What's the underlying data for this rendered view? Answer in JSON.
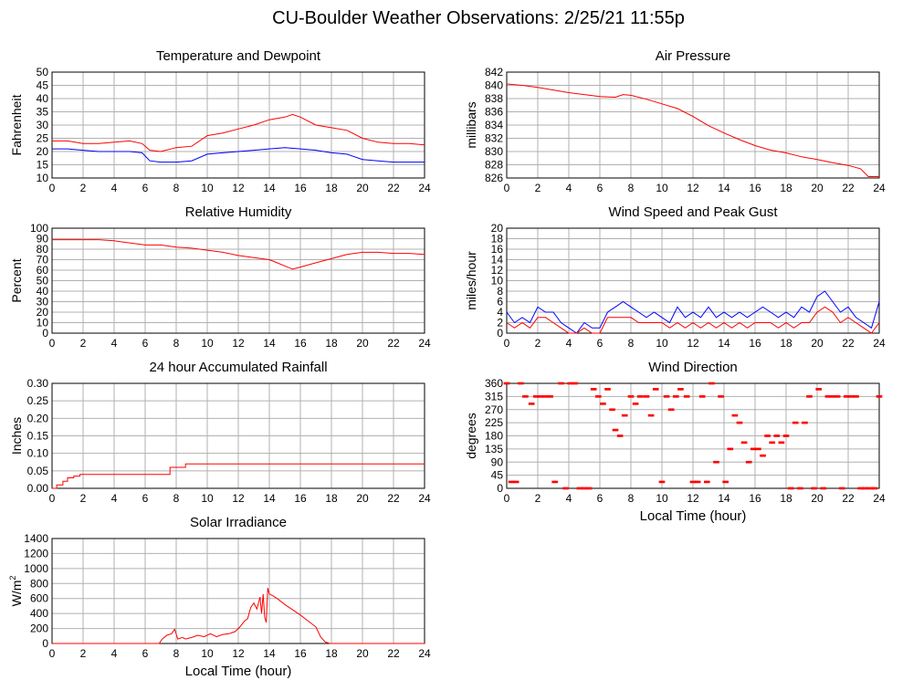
{
  "page": {
    "title": "CU-Boulder Weather Observations: 2/25/21 11:55p"
  },
  "colors": {
    "primary": "#ff0000",
    "secondary": "#0000ff",
    "grid": "#b0b0b0",
    "frame": "#000000"
  },
  "chart_data": [
    {
      "id": "temp",
      "type": "line",
      "title": "Temperature and Dewpoint",
      "xlabel": "",
      "ylabel": "Fahrenheit",
      "xlim": [
        0,
        24
      ],
      "xticks": [
        0,
        2,
        4,
        6,
        8,
        10,
        12,
        14,
        16,
        18,
        20,
        22,
        24
      ],
      "ylim": [
        10,
        50
      ],
      "yticks": [
        10,
        15,
        20,
        25,
        30,
        35,
        40,
        45,
        50
      ],
      "grid": true,
      "series": [
        {
          "color": "#ff0000",
          "x": [
            0,
            1,
            2,
            3,
            4,
            5,
            5.8,
            6.3,
            7,
            8,
            9,
            10,
            11,
            12,
            13,
            14,
            15,
            15.5,
            16,
            17,
            18,
            19,
            20,
            21,
            22,
            23,
            24
          ],
          "y": [
            24,
            24,
            23,
            23,
            23.5,
            24,
            23,
            20.5,
            20,
            21.5,
            22,
            26,
            27,
            28.5,
            30,
            32,
            33,
            34,
            33,
            30,
            29,
            28,
            25,
            23.5,
            23,
            23,
            22.5
          ]
        },
        {
          "color": "#0000ff",
          "x": [
            0,
            1,
            2,
            3,
            4,
            5,
            5.8,
            6.3,
            7,
            8,
            9,
            10,
            11,
            12,
            13,
            14,
            15,
            16,
            17,
            18,
            19,
            20,
            21,
            22,
            23,
            24
          ],
          "y": [
            21,
            21,
            20.5,
            20,
            20,
            20,
            19.5,
            16.5,
            16,
            16,
            16.5,
            19,
            19.5,
            20,
            20.5,
            21,
            21.5,
            21,
            20.5,
            19.5,
            19,
            17,
            16.5,
            16,
            16,
            16
          ]
        }
      ]
    },
    {
      "id": "press",
      "type": "line",
      "title": "Air Pressure",
      "xlabel": "",
      "ylabel": "millibars",
      "xlim": [
        0,
        24
      ],
      "xticks": [
        0,
        2,
        4,
        6,
        8,
        10,
        12,
        14,
        16,
        18,
        20,
        22,
        24
      ],
      "ylim": [
        826,
        842
      ],
      "yticks": [
        826,
        828,
        830,
        832,
        834,
        836,
        838,
        840,
        842
      ],
      "grid": true,
      "series": [
        {
          "color": "#ff0000",
          "x": [
            0,
            1,
            2,
            3,
            4,
            5,
            6,
            7,
            7.5,
            8,
            9,
            10,
            11,
            12,
            13,
            14,
            15,
            16,
            17,
            18,
            19,
            20,
            21,
            22,
            22.8,
            23.3,
            24
          ],
          "y": [
            840.2,
            840,
            839.7,
            839.3,
            838.9,
            838.6,
            838.3,
            838.2,
            838.6,
            838.5,
            837.9,
            837.2,
            836.5,
            835.3,
            833.9,
            832.8,
            831.8,
            830.9,
            830.2,
            829.8,
            829.2,
            828.8,
            828.3,
            827.9,
            827.4,
            826.2,
            826.2
          ]
        }
      ]
    },
    {
      "id": "rh",
      "type": "line",
      "title": "Relative Humidity",
      "xlabel": "",
      "ylabel": "Percent",
      "xlim": [
        0,
        24
      ],
      "xticks": [
        0,
        2,
        4,
        6,
        8,
        10,
        12,
        14,
        16,
        18,
        20,
        22,
        24
      ],
      "ylim": [
        0,
        100
      ],
      "yticks": [
        0,
        10,
        20,
        30,
        40,
        50,
        60,
        70,
        80,
        90,
        100
      ],
      "grid": true,
      "series": [
        {
          "color": "#ff0000",
          "x": [
            0,
            1,
            2,
            3,
            4,
            5,
            6,
            7,
            8,
            9,
            10,
            11,
            12,
            13,
            14,
            14.5,
            15,
            15.5,
            16,
            17,
            18,
            19,
            20,
            21,
            22,
            23,
            24
          ],
          "y": [
            89,
            89,
            89,
            89,
            88,
            86,
            84,
            84,
            82,
            81,
            79,
            77,
            74,
            72,
            70,
            67,
            64,
            61,
            63,
            67,
            71,
            75,
            77,
            77,
            76,
            76,
            75
          ]
        }
      ]
    },
    {
      "id": "wind",
      "type": "line",
      "title": "Wind Speed and Peak Gust",
      "xlabel": "",
      "ylabel": "miles/hour",
      "xlim": [
        0,
        24
      ],
      "xticks": [
        0,
        2,
        4,
        6,
        8,
        10,
        12,
        14,
        16,
        18,
        20,
        22,
        24
      ],
      "ylim": [
        0,
        20
      ],
      "yticks": [
        0,
        2,
        4,
        6,
        8,
        10,
        12,
        14,
        16,
        18,
        20
      ],
      "grid": true,
      "series": [
        {
          "color": "#0000ff",
          "x": [
            0,
            0.5,
            1,
            1.5,
            2,
            2.5,
            3,
            3.5,
            4,
            4.5,
            5,
            5.5,
            6,
            6.5,
            7,
            7.5,
            8,
            8.5,
            9,
            9.5,
            10,
            10.5,
            11,
            11.5,
            12,
            12.5,
            13,
            13.5,
            14,
            14.5,
            15,
            15.5,
            16,
            16.5,
            17,
            17.5,
            18,
            18.5,
            19,
            19.5,
            20,
            20.5,
            21,
            21.5,
            22,
            22.5,
            23,
            23.5,
            24
          ],
          "y": [
            4,
            2,
            3,
            2,
            5,
            4,
            4,
            2,
            1,
            0,
            2,
            1,
            1,
            4,
            5,
            6,
            5,
            4,
            3,
            4,
            3,
            2,
            5,
            3,
            4,
            3,
            5,
            3,
            4,
            3,
            4,
            3,
            4,
            5,
            4,
            3,
            4,
            3,
            5,
            4,
            7,
            8,
            6,
            4,
            5,
            3,
            2,
            1,
            6
          ]
        },
        {
          "color": "#ff0000",
          "x": [
            0,
            0.5,
            1,
            1.5,
            2,
            2.5,
            3,
            3.5,
            4,
            4.5,
            5,
            5.5,
            6,
            6.5,
            7,
            7.5,
            8,
            8.5,
            9,
            9.5,
            10,
            10.5,
            11,
            11.5,
            12,
            12.5,
            13,
            13.5,
            14,
            14.5,
            15,
            15.5,
            16,
            16.5,
            17,
            17.5,
            18,
            18.5,
            19,
            19.5,
            20,
            20.5,
            21,
            21.5,
            22,
            22.5,
            23,
            23.5,
            24
          ],
          "y": [
            2,
            1,
            2,
            1,
            3,
            3,
            2,
            1,
            0,
            0,
            1,
            0,
            0,
            3,
            3,
            3,
            3,
            2,
            2,
            2,
            2,
            1,
            2,
            1,
            2,
            1,
            2,
            1,
            2,
            1,
            2,
            1,
            2,
            2,
            2,
            1,
            2,
            1,
            2,
            2,
            4,
            5,
            4,
            2,
            3,
            2,
            1,
            0,
            2
          ]
        }
      ]
    },
    {
      "id": "rain",
      "type": "line",
      "title": "24 hour Accumulated Rainfall",
      "xlabel": "",
      "ylabel": "Inches",
      "xlim": [
        0,
        24
      ],
      "xticks": [
        0,
        2,
        4,
        6,
        8,
        10,
        12,
        14,
        16,
        18,
        20,
        22,
        24
      ],
      "ylim": [
        0,
        0.3
      ],
      "yticks": [
        0,
        0.05,
        0.1,
        0.15,
        0.2,
        0.25,
        0.3
      ],
      "ytickdec": 2,
      "grid": true,
      "series": [
        {
          "color": "#ff0000",
          "x": [
            0,
            0.3,
            0.3,
            0.7,
            0.7,
            1,
            1,
            1.4,
            1.4,
            1.8,
            1.8,
            7.6,
            7.6,
            8.6,
            8.6,
            24
          ],
          "y": [
            0,
            0,
            0.01,
            0.01,
            0.02,
            0.02,
            0.03,
            0.03,
            0.035,
            0.035,
            0.04,
            0.04,
            0.06,
            0.06,
            0.07,
            0.07
          ]
        }
      ]
    },
    {
      "id": "dir",
      "type": "scatter",
      "title": "Wind Direction",
      "xlabel": "Local Time (hour)",
      "ylabel": "degrees",
      "xlim": [
        0,
        24
      ],
      "xticks": [
        0,
        2,
        4,
        6,
        8,
        10,
        12,
        14,
        16,
        18,
        20,
        22,
        24
      ],
      "ylim": [
        0,
        360
      ],
      "yticks": [
        0,
        45,
        90,
        135,
        180,
        225,
        270,
        315,
        360
      ],
      "grid": true,
      "series": [
        {
          "color": "#ff0000",
          "x": [
            0,
            0.3,
            0.6,
            0.9,
            1.2,
            1.6,
            1.9,
            2.2,
            2.5,
            2.8,
            3.1,
            3.5,
            3.8,
            4.1,
            4.4,
            4.7,
            5.0,
            5.3,
            5.6,
            5.9,
            6.2,
            6.5,
            6.8,
            7.0,
            7.3,
            7.6,
            8.0,
            8.3,
            8.6,
            9.0,
            9.3,
            9.6,
            10.0,
            10.3,
            10.6,
            10.9,
            11.2,
            11.6,
            12.0,
            12.3,
            12.6,
            12.9,
            13.2,
            13.5,
            13.8,
            14.1,
            14.4,
            14.7,
            15.0,
            15.3,
            15.6,
            15.9,
            16.2,
            16.5,
            16.8,
            17.1,
            17.4,
            17.7,
            18.0,
            18.3,
            18.6,
            18.9,
            19.2,
            19.5,
            19.8,
            20.1,
            20.4,
            20.7,
            21.0,
            21.3,
            21.6,
            21.9,
            22.2,
            22.5,
            22.8,
            23.1,
            23.4,
            23.7,
            24.0
          ],
          "y": [
            360,
            22,
            22,
            360,
            315,
            290,
            315,
            315,
            315,
            315,
            22,
            360,
            0,
            360,
            360,
            0,
            0,
            0,
            340,
            315,
            290,
            340,
            270,
            200,
            180,
            250,
            315,
            290,
            315,
            315,
            250,
            340,
            22,
            315,
            270,
            315,
            340,
            315,
            22,
            22,
            315,
            22,
            360,
            90,
            315,
            22,
            135,
            250,
            225,
            157,
            90,
            135,
            135,
            112,
            180,
            157,
            180,
            157,
            180,
            0,
            225,
            0,
            225,
            315,
            0,
            340,
            0,
            315,
            315,
            315,
            0,
            315,
            315,
            315,
            0,
            0,
            0,
            0,
            315
          ]
        }
      ]
    },
    {
      "id": "solar",
      "type": "line",
      "title": "Solar Irradiance",
      "xlabel": "Local Time (hour)",
      "ylabel": "W/m",
      "xlim": [
        0,
        24
      ],
      "xticks": [
        0,
        2,
        4,
        6,
        8,
        10,
        12,
        14,
        16,
        18,
        20,
        22,
        24
      ],
      "ylim": [
        0,
        1400
      ],
      "yticks": [
        0,
        200,
        400,
        600,
        800,
        1000,
        1200,
        1400
      ],
      "grid": true,
      "series": [
        {
          "color": "#ff0000",
          "x": [
            0,
            6.9,
            7.1,
            7.4,
            7.7,
            7.9,
            8.1,
            8.4,
            8.6,
            9.0,
            9.4,
            9.8,
            10.2,
            10.6,
            11.0,
            11.4,
            11.8,
            12.1,
            12.4,
            12.6,
            12.8,
            13.0,
            13.2,
            13.4,
            13.5,
            13.6,
            13.7,
            13.8,
            13.9,
            14.0,
            14.2,
            14.5,
            15,
            16,
            16.5,
            17,
            17.3,
            17.6,
            17.9,
            18.2,
            24
          ],
          "y": [
            0,
            0,
            60,
            110,
            130,
            190,
            60,
            80,
            60,
            80,
            110,
            90,
            130,
            90,
            120,
            130,
            160,
            220,
            300,
            330,
            480,
            540,
            460,
            620,
            400,
            660,
            350,
            280,
            740,
            660,
            640,
            600,
            520,
            380,
            300,
            220,
            90,
            20,
            0,
            0,
            0
          ]
        }
      ]
    }
  ]
}
